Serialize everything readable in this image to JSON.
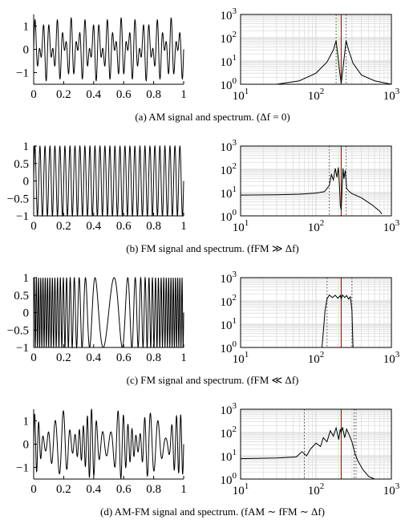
{
  "chart_data": [
    {
      "type": "line",
      "panel": "a",
      "plot": "signal",
      "xlim": [
        0,
        1
      ],
      "ylim": [
        -1.5,
        1.5
      ],
      "xticks": [
        0,
        0.2,
        0.4,
        0.6,
        0.8,
        1
      ],
      "yticks": [
        -1,
        0,
        1
      ],
      "xtick_labels": [
        "0",
        "0.2",
        "0.4",
        "0.6",
        "0.8",
        "1"
      ],
      "ytick_labels": [
        "−1",
        "0",
        "1"
      ],
      "signal": {
        "kind": "am",
        "carrier_cycles": 27,
        "mod_cycles": 6,
        "amplitude": 1.35
      },
      "grid": false
    },
    {
      "type": "line",
      "panel": "a",
      "plot": "spectrum",
      "xscale": "log",
      "yscale": "log",
      "xlim": [
        10,
        1000
      ],
      "ylim": [
        1,
        1000
      ],
      "xtick_labels": [
        "10^1",
        "10^2",
        "10^3"
      ],
      "ytick_labels": [
        "10^0",
        "10^1",
        "10^2",
        "10^3"
      ],
      "grid": true,
      "center_line": {
        "x": 216,
        "color": "#cc0000"
      },
      "dotted_lines": [
        185,
        251
      ],
      "series": [
        {
          "x": [
            30,
            60,
            100,
            140,
            170,
            185,
            200,
            210,
            216,
            222,
            232,
            251,
            270,
            310,
            400,
            600,
            1000
          ],
          "y": [
            1.0,
            1.4,
            3,
            9,
            30,
            75,
            8,
            2.2,
            1.1,
            2.2,
            8,
            75,
            30,
            8,
            2.5,
            1.4,
            1.0
          ]
        }
      ],
      "caption": "(a) AM signal and spectrum. (Δf = 0)"
    },
    {
      "type": "line",
      "panel": "b",
      "plot": "signal",
      "xlim": [
        0,
        1
      ],
      "ylim": [
        -1,
        1
      ],
      "xticks": [
        0,
        0.2,
        0.4,
        0.6,
        0.8,
        1
      ],
      "yticks": [
        -1,
        -0.5,
        0,
        0.5,
        1
      ],
      "xtick_labels": [
        "0",
        "0.2",
        "0.4",
        "0.6",
        "0.8",
        "1"
      ],
      "ytick_labels": [
        "−1",
        "−0.5",
        "0",
        "0.5",
        "1"
      ],
      "signal": {
        "kind": "fm",
        "carrier_cycles": 30,
        "dev_cycles": 1,
        "mod_cycles": 24,
        "amplitude": 1
      },
      "grid": false
    },
    {
      "type": "line",
      "panel": "b",
      "plot": "spectrum",
      "xscale": "log",
      "yscale": "log",
      "xlim": [
        10,
        1000
      ],
      "ylim": [
        1,
        1000
      ],
      "xtick_labels": [
        "10^1",
        "10^2",
        "10^3"
      ],
      "ytick_labels": [
        "10^0",
        "10^1",
        "10^2",
        "10^3"
      ],
      "grid": true,
      "center_line": {
        "x": 216,
        "color": "#cc0000"
      },
      "dotted_lines": [
        150,
        251
      ],
      "series": [
        {
          "x": [
            10,
            30,
            60,
            100,
            130,
            150,
            160,
            170,
            180,
            190,
            198,
            205,
            210,
            216,
            222,
            228,
            235,
            245,
            255,
            270,
            300,
            400,
            550,
            700,
            750
          ],
          "y": [
            7.8,
            8,
            8.5,
            9.5,
            11,
            20,
            60,
            35,
            110,
            45,
            120,
            20,
            3,
            1.8,
            15,
            110,
            40,
            90,
            15,
            12,
            9,
            6,
            3,
            1.6,
            1.2
          ]
        }
      ],
      "caption": "(b) FM signal and spectrum. (fFM ≫ Δf)"
    },
    {
      "type": "line",
      "panel": "c",
      "plot": "signal",
      "xlim": [
        0,
        1
      ],
      "ylim": [
        -1,
        1
      ],
      "xticks": [
        0,
        0.2,
        0.4,
        0.6,
        0.8,
        1
      ],
      "yticks": [
        -1,
        -0.5,
        0,
        0.5,
        1
      ],
      "xtick_labels": [
        "0",
        "0.2",
        "0.4",
        "0.6",
        "0.8",
        "1"
      ],
      "ytick_labels": [
        "−1",
        "−0.5",
        "0",
        "0.5",
        "1"
      ],
      "signal": {
        "kind": "fm",
        "carrier_cycles": 38,
        "dev_cycles": 5,
        "mod_cycles": 1,
        "amplitude": 1
      },
      "grid": false
    },
    {
      "type": "line",
      "panel": "c",
      "plot": "spectrum",
      "xscale": "log",
      "yscale": "log",
      "xlim": [
        10,
        1000
      ],
      "ylim": [
        1,
        1000
      ],
      "xtick_labels": [
        "10^1",
        "10^2",
        "10^3"
      ],
      "ytick_labels": [
        "10^0",
        "10^1",
        "10^2",
        "10^3"
      ],
      "grid": true,
      "center_line": {
        "x": 216,
        "color": "#cc0000"
      },
      "dotted_lines": [
        140,
        300
      ],
      "series": [
        {
          "x": [
            120,
            126,
            132,
            140,
            150,
            165,
            180,
            195,
            210,
            216,
            225,
            240,
            255,
            270,
            285,
            300,
            310
          ],
          "y": [
            1.0,
            6,
            40,
            120,
            180,
            140,
            175,
            130,
            170,
            120,
            180,
            140,
            170,
            120,
            150,
            40,
            1.0
          ]
        }
      ],
      "caption": "(c) FM signal and spectrum. (fFM ≪ Δf)"
    },
    {
      "type": "line",
      "panel": "d",
      "plot": "signal",
      "xlim": [
        0,
        1
      ],
      "ylim": [
        -1.5,
        1.5
      ],
      "xticks": [
        0,
        0.2,
        0.4,
        0.6,
        0.8,
        1
      ],
      "yticks": [
        -1,
        0,
        1
      ],
      "xtick_labels": [
        "0",
        "0.2",
        "0.4",
        "0.6",
        "0.8",
        "1"
      ],
      "ytick_labels": [
        "−1",
        "0",
        "1"
      ],
      "signal": {
        "kind": "amfm",
        "carrier_cycles": 28,
        "dev_cycles": 4,
        "mod_cycles": 3,
        "am_cycles": 5,
        "amplitude": 1.35
      },
      "grid": false
    },
    {
      "type": "line",
      "panel": "d",
      "plot": "spectrum",
      "xscale": "log",
      "yscale": "log",
      "xlim": [
        10,
        1000
      ],
      "ylim": [
        1,
        1000
      ],
      "xtick_labels": [
        "10^1",
        "10^2",
        "10^3"
      ],
      "ytick_labels": [
        "10^0",
        "10^1",
        "10^2",
        "10^3"
      ],
      "grid": true,
      "center_line": {
        "x": 216,
        "color": "#cc0000"
      },
      "dotted_lines": [
        70,
        320,
        340
      ],
      "series": [
        {
          "x": [
            10,
            30,
            55,
            65,
            75,
            85,
            100,
            115,
            125,
            140,
            155,
            170,
            185,
            200,
            210,
            216,
            225,
            240,
            255,
            275,
            300,
            330,
            360,
            420,
            500,
            600
          ],
          "y": [
            7.5,
            8,
            9,
            15,
            10,
            20,
            35,
            25,
            60,
            40,
            120,
            70,
            160,
            50,
            140,
            100,
            170,
            60,
            140,
            80,
            40,
            12,
            6,
            2.5,
            1.3,
            1.0
          ]
        }
      ],
      "caption": "(d) AM-FM signal and spectrum. (fAM ∼ fFM ∼ Δf)"
    }
  ]
}
